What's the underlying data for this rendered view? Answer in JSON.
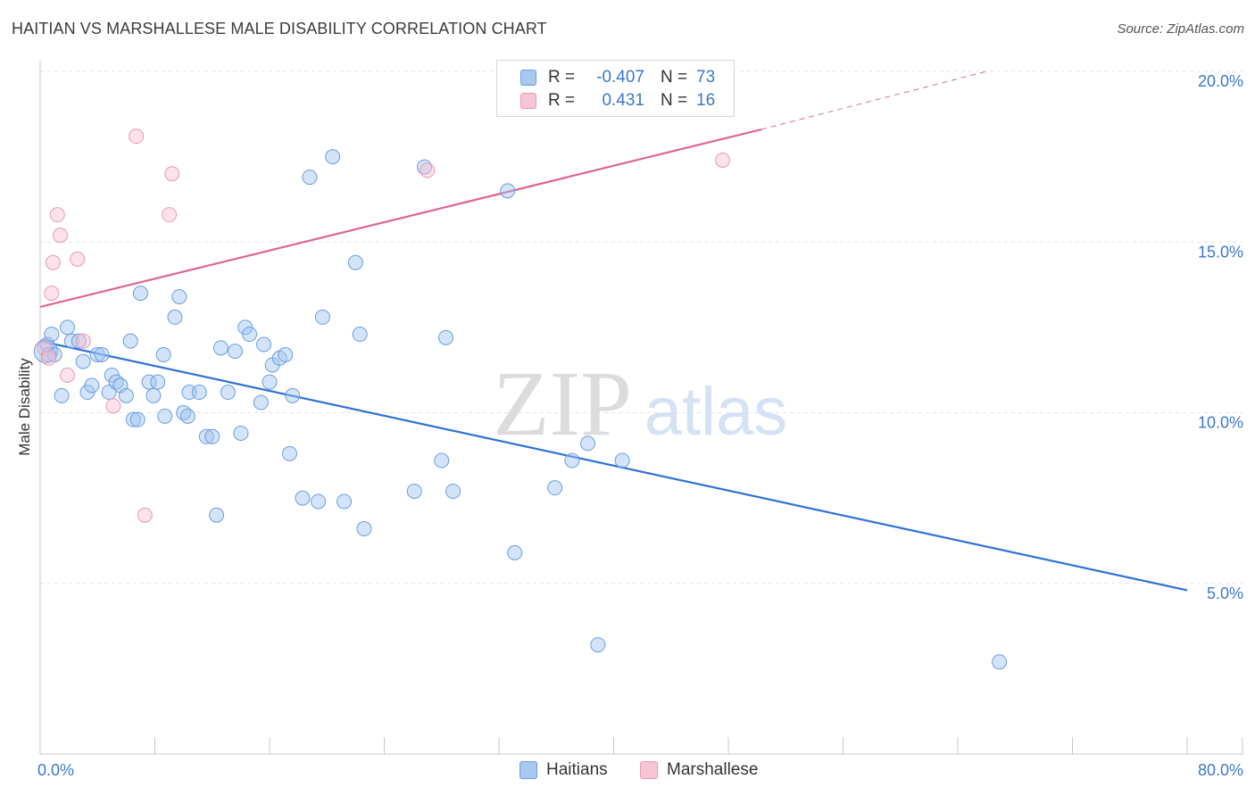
{
  "header": {
    "title": "HAITIAN VS MARSHALLESE MALE DISABILITY CORRELATION CHART",
    "source": "Source: ZipAtlas.com"
  },
  "legend_top": {
    "rows": [
      {
        "r_label": "R =",
        "r_value": "-0.407",
        "n_label": "N =",
        "n_value": "73",
        "color": "#a9c8f0",
        "border": "#6a9de0"
      },
      {
        "r_label": "R =",
        "r_value": "0.431",
        "n_label": "N =",
        "n_value": "16",
        "color": "#f7c4d3",
        "border": "#e899b2"
      }
    ]
  },
  "legend_bottom": {
    "haitians": "Haitians",
    "marshallese": "Marshallese"
  },
  "watermark": {
    "zip": "ZIP",
    "atlas": "atlas"
  },
  "colors": {
    "blue_fill": "rgba(160,195,240,0.45)",
    "blue_stroke": "#6a9de0",
    "blue_line": "#2f72d6",
    "pink_fill": "rgba(247,190,210,0.45)",
    "pink_stroke": "#e899b2",
    "pink_line": "#e0668f",
    "tick_label": "#3b78c9",
    "grid": "#e3e3e3"
  },
  "chart_data": {
    "type": "scatter",
    "title": "HAITIAN VS MARSHALLESE MALE DISABILITY CORRELATION CHART",
    "xlabel": "",
    "ylabel": "Male Disability",
    "xlim": [
      0,
      80
    ],
    "ylim": [
      0,
      20.5
    ],
    "x_tick_labels": [
      {
        "v": 0,
        "t": "0.0%"
      },
      {
        "v": 80,
        "t": "80.0%"
      }
    ],
    "y_tick_labels": [
      {
        "v": 5,
        "t": "5.0%"
      },
      {
        "v": 10,
        "t": "10.0%"
      },
      {
        "v": 15,
        "t": "15.0%"
      },
      {
        "v": 20,
        "t": "20.0%"
      }
    ],
    "grid": true,
    "legend_position": "top-center",
    "series": [
      {
        "name": "Haitians",
        "points": [
          [
            0.4,
            11.8
          ],
          [
            0.5,
            12.0
          ],
          [
            0.6,
            11.7
          ],
          [
            0.8,
            12.3
          ],
          [
            1.0,
            11.7
          ],
          [
            1.5,
            10.5
          ],
          [
            1.9,
            12.5
          ],
          [
            2.2,
            12.1
          ],
          [
            2.7,
            12.1
          ],
          [
            3.0,
            11.5
          ],
          [
            3.3,
            10.6
          ],
          [
            3.6,
            10.8
          ],
          [
            4.0,
            11.7
          ],
          [
            4.3,
            11.7
          ],
          [
            4.8,
            10.6
          ],
          [
            5.0,
            11.1
          ],
          [
            5.3,
            10.9
          ],
          [
            5.6,
            10.8
          ],
          [
            6.0,
            10.5
          ],
          [
            6.3,
            12.1
          ],
          [
            6.5,
            9.8
          ],
          [
            6.8,
            9.8
          ],
          [
            7.0,
            13.5
          ],
          [
            7.6,
            10.9
          ],
          [
            7.9,
            10.5
          ],
          [
            8.2,
            10.9
          ],
          [
            8.6,
            11.7
          ],
          [
            8.7,
            9.9
          ],
          [
            9.4,
            12.8
          ],
          [
            9.7,
            13.4
          ],
          [
            10.0,
            10.0
          ],
          [
            10.3,
            9.9
          ],
          [
            10.4,
            10.6
          ],
          [
            11.1,
            10.6
          ],
          [
            11.6,
            9.3
          ],
          [
            12.0,
            9.3
          ],
          [
            12.3,
            7.0
          ],
          [
            12.6,
            11.9
          ],
          [
            13.1,
            10.6
          ],
          [
            13.6,
            11.8
          ],
          [
            14.0,
            9.4
          ],
          [
            14.3,
            12.5
          ],
          [
            14.6,
            12.3
          ],
          [
            15.4,
            10.3
          ],
          [
            15.6,
            12.0
          ],
          [
            16.0,
            10.9
          ],
          [
            16.2,
            11.4
          ],
          [
            16.7,
            11.6
          ],
          [
            17.1,
            11.7
          ],
          [
            17.4,
            8.8
          ],
          [
            17.6,
            10.5
          ],
          [
            18.3,
            7.5
          ],
          [
            18.8,
            16.9
          ],
          [
            19.4,
            7.4
          ],
          [
            19.7,
            12.8
          ],
          [
            20.4,
            17.5
          ],
          [
            21.2,
            7.4
          ],
          [
            22.0,
            14.4
          ],
          [
            22.3,
            12.3
          ],
          [
            22.6,
            6.6
          ],
          [
            26.1,
            7.7
          ],
          [
            26.8,
            17.2
          ],
          [
            28.0,
            8.6
          ],
          [
            28.3,
            12.2
          ],
          [
            28.8,
            7.7
          ],
          [
            32.6,
            16.5
          ],
          [
            33.1,
            5.9
          ],
          [
            35.9,
            7.8
          ],
          [
            37.1,
            8.6
          ],
          [
            38.2,
            9.1
          ],
          [
            38.9,
            3.2
          ],
          [
            40.6,
            8.6
          ],
          [
            66.9,
            2.7
          ]
        ]
      },
      {
        "name": "Marshallese",
        "points": [
          [
            0.3,
            11.9
          ],
          [
            0.6,
            11.6
          ],
          [
            0.8,
            13.5
          ],
          [
            0.9,
            14.4
          ],
          [
            1.2,
            15.8
          ],
          [
            1.4,
            15.2
          ],
          [
            1.9,
            11.1
          ],
          [
            2.6,
            14.5
          ],
          [
            3.0,
            12.1
          ],
          [
            5.1,
            10.2
          ],
          [
            6.7,
            18.1
          ],
          [
            7.3,
            7.0
          ],
          [
            9.0,
            15.8
          ],
          [
            9.2,
            17.0
          ],
          [
            27.0,
            17.1
          ],
          [
            47.6,
            17.4
          ]
        ]
      }
    ],
    "trendlines": [
      {
        "series": "Haitians",
        "x": [
          0,
          80
        ],
        "y": [
          12.1,
          4.8
        ],
        "style": "solid"
      },
      {
        "series": "Marshallese",
        "x": [
          0,
          50.3
        ],
        "y": [
          13.1,
          18.3
        ],
        "style": "solid"
      },
      {
        "series": "Marshallese",
        "x": [
          50.3,
          66.0
        ],
        "y": [
          18.3,
          20.0
        ],
        "style": "dashed"
      }
    ]
  }
}
